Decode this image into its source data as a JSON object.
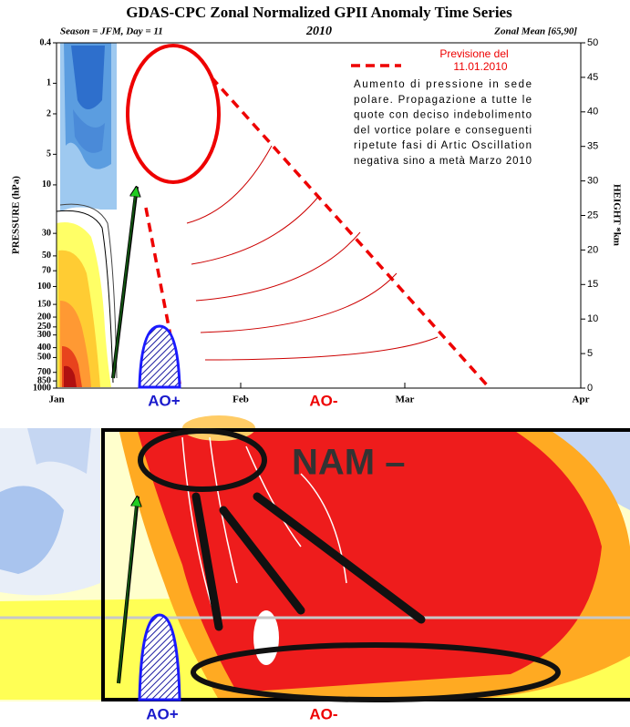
{
  "top_panel": {
    "title": "GDAS-CPC Zonal Normalized GPII Anomaly Time Series",
    "season": "Season = JFM, Day = 11",
    "year": "2010",
    "zonal_mean": "Zonal Mean [65,90]",
    "y_axis_label": "PRESSURE (hPa)",
    "y2_axis_label": "HEIGHT *km",
    "pressure_ticks": [
      0.4,
      1,
      2,
      5,
      10,
      30,
      50,
      70,
      100,
      150,
      200,
      250,
      300,
      400,
      500,
      700,
      850,
      1000
    ],
    "height_ticks": [
      0,
      5,
      10,
      15,
      20,
      25,
      30,
      35,
      40,
      45,
      50
    ],
    "month_ticks": [
      "Jan",
      "Feb",
      "Mar",
      "Apr"
    ],
    "legend": [
      "Previsione del",
      "11.01.2010"
    ],
    "annotation": [
      "Aumento di pressione in sede",
      "polare. Propagazione a tutte le",
      "quote con deciso indebolimento",
      "del vortice polare e conseguenti",
      "ripetute fasi di Artic Oscillation",
      "negativa sino a metà Marzo 2010"
    ],
    "ao_plus": "AO+",
    "ao_minus": "AO-"
  },
  "bottom_panel": {
    "nam_label": "NAM –",
    "ao_plus": "AO+",
    "ao_minus": "AO-"
  }
}
